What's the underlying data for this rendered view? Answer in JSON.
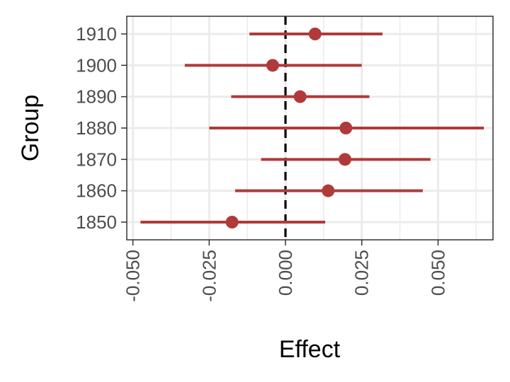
{
  "chart_data": {
    "type": "scatter",
    "subtype": "forest-plot-with-error-bars",
    "xlabel": "Effect",
    "ylabel": "Group",
    "xlim": [
      -0.052,
      0.068
    ],
    "x_ticks": [
      -0.05,
      -0.025,
      0.0,
      0.025,
      0.05
    ],
    "x_tick_labels": [
      "-0.050",
      "-0.025",
      "0.000",
      "0.025",
      "0.050"
    ],
    "categories": [
      "1850",
      "1860",
      "1870",
      "1880",
      "1890",
      "1900",
      "1910"
    ],
    "estimates": [
      -0.0175,
      0.014,
      0.0195,
      0.0198,
      0.0048,
      -0.0042,
      0.0097
    ],
    "lower": [
      -0.0475,
      -0.0165,
      -0.008,
      -0.025,
      -0.0178,
      -0.033,
      -0.0118
    ],
    "upper": [
      0.013,
      0.045,
      0.0475,
      0.065,
      0.0275,
      0.025,
      0.0318
    ],
    "reference_line": 0,
    "grid": true,
    "colors": {
      "points": "#b03a3a",
      "reference": "#000000",
      "grid": "#ebebeb",
      "panel_border": "#333333"
    }
  }
}
